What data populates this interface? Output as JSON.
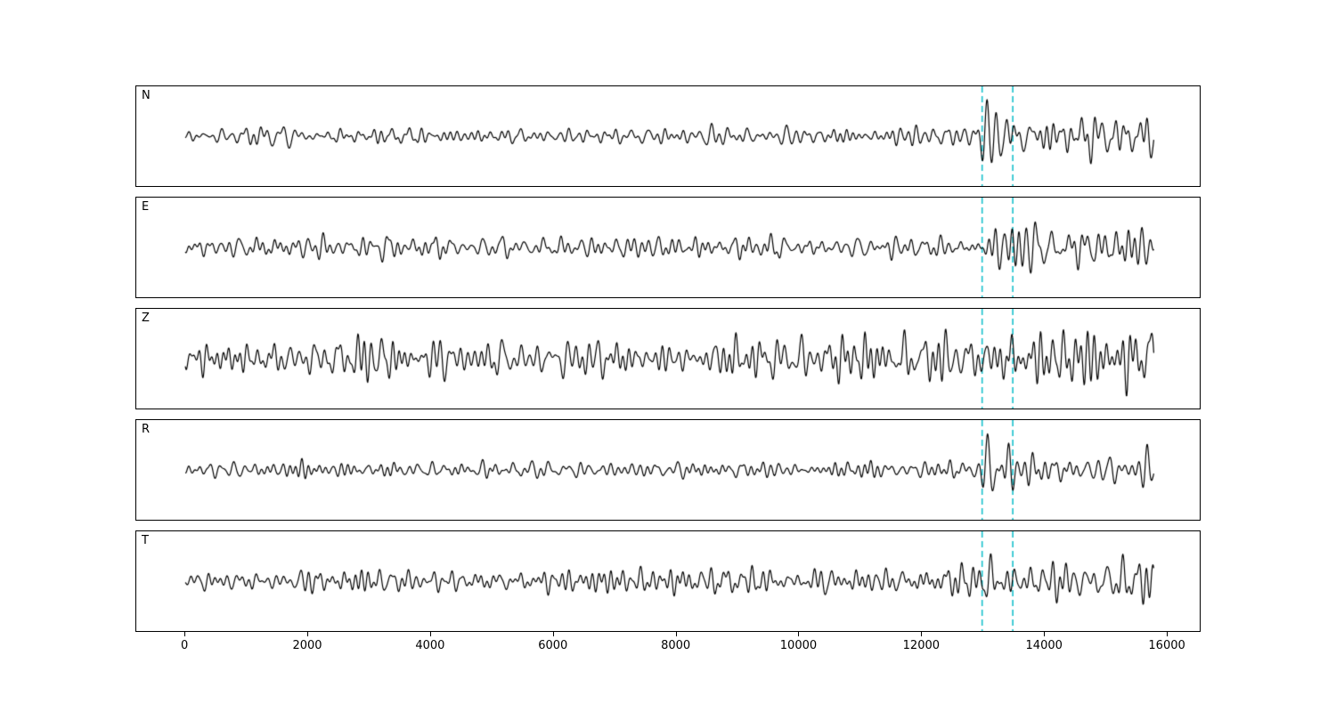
{
  "figure": {
    "background": "#ffffff"
  },
  "chart_data": {
    "type": "line",
    "title": "",
    "xlabel": "",
    "ylabel": "",
    "grid": false,
    "legend": false,
    "xlim": [
      -800,
      16550
    ],
    "x_start": 0,
    "x_end": 15800,
    "x_ticks": [
      0,
      2000,
      4000,
      6000,
      8000,
      10000,
      12000,
      14000,
      16000
    ],
    "markers": [
      13000,
      13500
    ],
    "marker_color": "#18c0cc",
    "line_color": "#000000",
    "noise": {
      "components": 70,
      "fmin": 0.0025,
      "fmax": 0.011
    },
    "panels": [
      {
        "label": "N",
        "seed": 101,
        "envelope": [
          [
            0,
            4.5
          ],
          [
            12950,
            4.5
          ],
          [
            13550,
            11
          ],
          [
            14600,
            10
          ],
          [
            15500,
            8
          ],
          [
            15800,
            7
          ]
        ],
        "pulses": [
          {
            "x": 13080,
            "w": 70,
            "amp": 44,
            "wl": 160
          },
          {
            "x": 13400,
            "w": 75,
            "amp": 36,
            "wl": 170
          },
          {
            "x": 15690,
            "w": 55,
            "amp": 20,
            "wl": 150
          }
        ]
      },
      {
        "label": "E",
        "seed": 202,
        "envelope": [
          [
            0,
            5
          ],
          [
            12800,
            5.5
          ],
          [
            13200,
            8
          ],
          [
            13700,
            13
          ],
          [
            14200,
            12
          ],
          [
            15000,
            10
          ],
          [
            15800,
            11
          ]
        ],
        "pulses": [
          {
            "x": 13880,
            "w": 90,
            "amp": 30,
            "wl": 180
          }
        ]
      },
      {
        "label": "Z",
        "seed": 303,
        "envelope": [
          [
            0,
            9
          ],
          [
            3000,
            10
          ],
          [
            13000,
            10
          ],
          [
            13700,
            13
          ],
          [
            15500,
            13
          ],
          [
            15800,
            14
          ]
        ],
        "pulses": [
          {
            "x": 15720,
            "w": 60,
            "amp": 34,
            "wl": 200
          }
        ]
      },
      {
        "label": "R",
        "seed": 404,
        "envelope": [
          [
            0,
            3.8
          ],
          [
            12950,
            4
          ],
          [
            13550,
            9
          ],
          [
            14800,
            8
          ],
          [
            15500,
            6.5
          ],
          [
            15800,
            6
          ]
        ],
        "pulses": [
          {
            "x": 13090,
            "w": 65,
            "amp": 42,
            "wl": 160
          },
          {
            "x": 13420,
            "w": 70,
            "amp": 38,
            "wl": 165
          },
          {
            "x": 15690,
            "w": 50,
            "amp": 20,
            "wl": 150
          }
        ]
      },
      {
        "label": "T",
        "seed": 505,
        "envelope": [
          [
            0,
            5
          ],
          [
            5000,
            6.5
          ],
          [
            12900,
            7
          ],
          [
            13350,
            12
          ],
          [
            14200,
            14
          ],
          [
            15200,
            11
          ],
          [
            15800,
            13
          ]
        ],
        "pulses": [
          {
            "x": 13150,
            "w": 80,
            "amp": 30,
            "wl": 170
          },
          {
            "x": 13950,
            "w": 120,
            "amp": 18,
            "wl": 200
          }
        ]
      }
    ]
  }
}
